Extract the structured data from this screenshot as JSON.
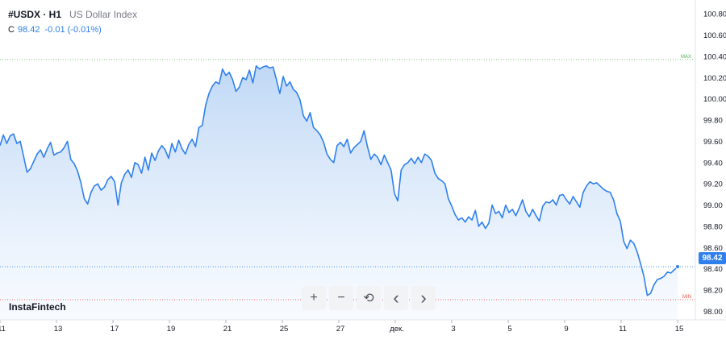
{
  "header": {
    "symbol": "#USDX · H1",
    "description": "US Dollar Index"
  },
  "quote": {
    "close_label": "C",
    "close_value": "98.42",
    "change": "-0.01 (-0.01%)"
  },
  "brand": "InstaFintech",
  "toolbar": {
    "zoom_in": "+",
    "zoom_out": "−",
    "reset": "⟲",
    "scroll_left": "‹",
    "scroll_right": "›"
  },
  "colors": {
    "line": "#2f80ed",
    "area_top": "#bcd6f5",
    "area_bottom": "#f3f8fe",
    "max_line": "#4caf50",
    "min_line": "#ef5350"
  },
  "chart_data": {
    "type": "area",
    "ylim": [
      97.92,
      100.93
    ],
    "y_ticks": [
      "98.00",
      "98.20",
      "98.40",
      "98.60",
      "98.80",
      "99.00",
      "99.20",
      "99.40",
      "99.60",
      "99.80",
      "100.00",
      "100.20",
      "100.40",
      "100.60",
      "100.80"
    ],
    "x_ticks": [
      "11",
      "13",
      "17",
      "19",
      "21",
      "25",
      "27",
      "дек.",
      "3",
      "5",
      "9",
      "11",
      "15"
    ],
    "x_tick_index": [
      0,
      10,
      20,
      30,
      40,
      50,
      60,
      70,
      80,
      90,
      100,
      110,
      120
    ],
    "max_label": "MAX",
    "max_value": 100.37,
    "min_label": "MIN",
    "min_value": 98.11,
    "last_price_label": "98.42",
    "last_price": 98.42,
    "series": [
      {
        "values": [
          99.56,
          99.66,
          99.58,
          99.65,
          99.67,
          99.58,
          99.6,
          99.46,
          99.31,
          99.34,
          99.41,
          99.48,
          99.52,
          99.45,
          99.53,
          99.59,
          99.47,
          99.49,
          99.5,
          99.54,
          99.6,
          99.43,
          99.39,
          99.32,
          99.21,
          99.06,
          99.01,
          99.12,
          99.18,
          99.2,
          99.14,
          99.17,
          99.24,
          99.27,
          99.22,
          99.0,
          99.21,
          99.29,
          99.33,
          99.26,
          99.4,
          99.38,
          99.3,
          99.45,
          99.33,
          99.49,
          99.42,
          99.51,
          99.56,
          99.52,
          99.44,
          99.58,
          99.5,
          99.61,
          99.53,
          99.48,
          99.57,
          99.62,
          99.55,
          99.73,
          99.75,
          99.94,
          100.05,
          100.12,
          100.16,
          100.14,
          100.28,
          100.22,
          100.25,
          100.18,
          100.07,
          100.11,
          100.2,
          100.18,
          100.27,
          100.15,
          100.31,
          100.28,
          100.3,
          100.31,
          100.29,
          100.3,
          100.18,
          100.05,
          100.21,
          100.12,
          100.16,
          100.09,
          100.06,
          99.99,
          99.84,
          99.79,
          99.87,
          99.73,
          99.7,
          99.66,
          99.59,
          99.48,
          99.43,
          99.4,
          99.56,
          99.59,
          99.55,
          99.62,
          99.49,
          99.54,
          99.57,
          99.6,
          99.7,
          99.55,
          99.43,
          99.48,
          99.45,
          99.38,
          99.47,
          99.4,
          99.33,
          99.11,
          99.04,
          99.33,
          99.38,
          99.4,
          99.44,
          99.39,
          99.45,
          99.4,
          99.48,
          99.46,
          99.42,
          99.3,
          99.25,
          99.23,
          99.2,
          99.06,
          98.99,
          98.91,
          98.86,
          98.88,
          98.84,
          98.89,
          98.86,
          98.95,
          98.8,
          98.84,
          98.78,
          98.83,
          99.0,
          98.92,
          98.94,
          98.88,
          99.0,
          98.93,
          98.96,
          98.9,
          98.97,
          99.05,
          98.94,
          98.89,
          98.96,
          98.9,
          98.85,
          98.99,
          99.03,
          99.02,
          99.05,
          99.0,
          99.09,
          99.1,
          99.05,
          99.01,
          99.08,
          99.03,
          98.98,
          99.12,
          99.18,
          99.22,
          99.2,
          99.21,
          99.18,
          99.15,
          99.13,
          99.12,
          99.05,
          98.92,
          98.85,
          98.66,
          98.59,
          98.67,
          98.64,
          98.56,
          98.45,
          98.33,
          98.15,
          98.17,
          98.25,
          98.3,
          98.31,
          98.33,
          98.37,
          98.36,
          98.39,
          98.42
        ]
      }
    ]
  }
}
